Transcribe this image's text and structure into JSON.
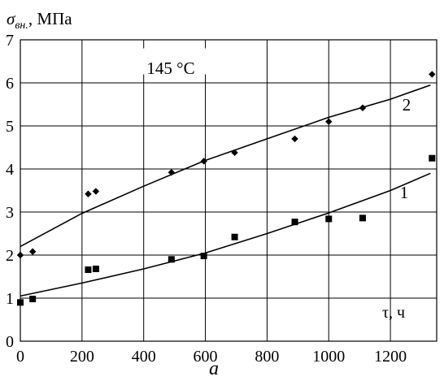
{
  "chart_data": {
    "type": "scatter",
    "ylabel_symbol": "σ",
    "ylabel_subscript": "вн.",
    "ylabel_unit": ", МПа",
    "xlabel": "τ, ч",
    "annotation": "145 °C",
    "panel_label": "a",
    "xlim": [
      0,
      1350
    ],
    "ylim": [
      0,
      7
    ],
    "x_ticks": [
      0,
      200,
      400,
      600,
      800,
      1000,
      1200
    ],
    "y_ticks": [
      0,
      1,
      2,
      3,
      4,
      5,
      6,
      7
    ],
    "grid": true,
    "series": [
      {
        "name": "2",
        "marker": "diamond",
        "points": [
          {
            "x": 0,
            "y": 2.0
          },
          {
            "x": 40,
            "y": 2.08
          },
          {
            "x": 220,
            "y": 3.42
          },
          {
            "x": 245,
            "y": 3.48
          },
          {
            "x": 490,
            "y": 3.92
          },
          {
            "x": 595,
            "y": 4.18
          },
          {
            "x": 695,
            "y": 4.38
          },
          {
            "x": 890,
            "y": 4.7
          },
          {
            "x": 1000,
            "y": 5.1
          },
          {
            "x": 1110,
            "y": 5.42
          },
          {
            "x": 1335,
            "y": 6.2
          }
        ],
        "fit": [
          {
            "x": 0,
            "y": 2.2
          },
          {
            "x": 200,
            "y": 2.97
          },
          {
            "x": 400,
            "y": 3.6
          },
          {
            "x": 600,
            "y": 4.2
          },
          {
            "x": 800,
            "y": 4.7
          },
          {
            "x": 1000,
            "y": 5.2
          },
          {
            "x": 1200,
            "y": 5.62
          },
          {
            "x": 1330,
            "y": 5.95
          }
        ]
      },
      {
        "name": "1",
        "marker": "square",
        "points": [
          {
            "x": 0,
            "y": 0.9
          },
          {
            "x": 40,
            "y": 0.98
          },
          {
            "x": 220,
            "y": 1.66
          },
          {
            "x": 245,
            "y": 1.68
          },
          {
            "x": 490,
            "y": 1.9
          },
          {
            "x": 595,
            "y": 1.98
          },
          {
            "x": 695,
            "y": 2.42
          },
          {
            "x": 890,
            "y": 2.77
          },
          {
            "x": 1000,
            "y": 2.84
          },
          {
            "x": 1110,
            "y": 2.86
          },
          {
            "x": 1335,
            "y": 4.25
          }
        ],
        "fit": [
          {
            "x": 0,
            "y": 1.05
          },
          {
            "x": 200,
            "y": 1.35
          },
          {
            "x": 400,
            "y": 1.68
          },
          {
            "x": 600,
            "y": 2.05
          },
          {
            "x": 800,
            "y": 2.5
          },
          {
            "x": 1000,
            "y": 2.98
          },
          {
            "x": 1200,
            "y": 3.5
          },
          {
            "x": 1330,
            "y": 3.9
          }
        ]
      }
    ]
  }
}
